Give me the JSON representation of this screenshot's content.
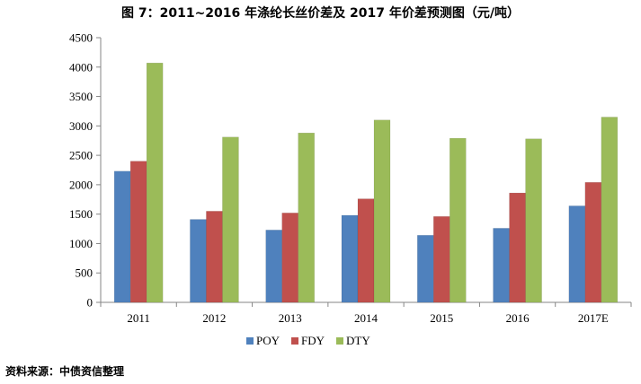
{
  "title": "图 7：2011~2016 年涤纶长丝价差及 2017 年价差预测图（元/吨）",
  "source": "资料来源：中债资信整理",
  "chart_data": {
    "type": "bar",
    "categories": [
      "2011",
      "2012",
      "2013",
      "2014",
      "2015",
      "2016",
      "2017E"
    ],
    "series": [
      {
        "name": "POY",
        "color": "#4F81BD",
        "values": [
          2230,
          1410,
          1230,
          1480,
          1140,
          1260,
          1640
        ]
      },
      {
        "name": "FDY",
        "color": "#C0504D",
        "values": [
          2400,
          1550,
          1520,
          1760,
          1460,
          1860,
          2040
        ]
      },
      {
        "name": "DTY",
        "color": "#9BBB59",
        "values": [
          4070,
          2810,
          2880,
          3100,
          2790,
          2780,
          3150
        ]
      }
    ],
    "ylim": [
      0,
      4500
    ],
    "yticks": [
      0,
      500,
      1000,
      1500,
      2000,
      2500,
      3000,
      3500,
      4000,
      4500
    ],
    "grid": false,
    "legend_position": "bottom"
  }
}
